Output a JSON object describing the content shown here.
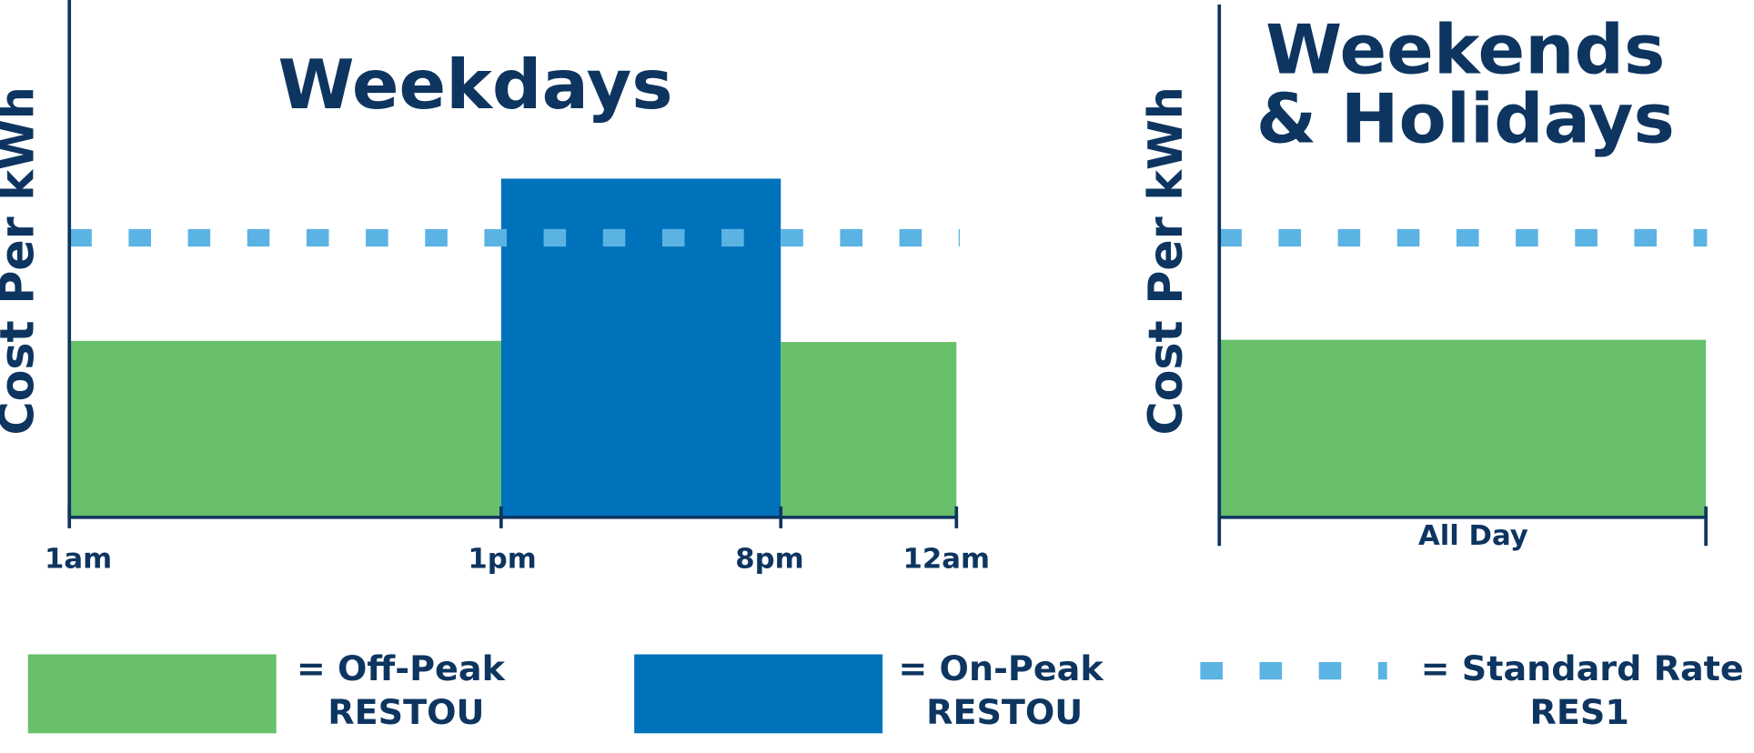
{
  "weekdays": {
    "title": "Weekdays",
    "y_label": "Cost Per kWh",
    "x_labels": [
      "1am",
      "1pm",
      "8pm",
      "12am"
    ]
  },
  "weekends": {
    "title_lines": [
      "Weekends",
      "& Holidays"
    ],
    "y_label": "Cost Per kWh",
    "x_label": "All Day"
  },
  "legend": {
    "items": [
      {
        "label_lines": [
          "= Off-Peak",
          "RESTOU"
        ]
      },
      {
        "label_lines": [
          "= On-Peak",
          "RESTOU"
        ]
      },
      {
        "label_lines": [
          "= Standard Rate",
          "RES1"
        ]
      }
    ]
  }
}
